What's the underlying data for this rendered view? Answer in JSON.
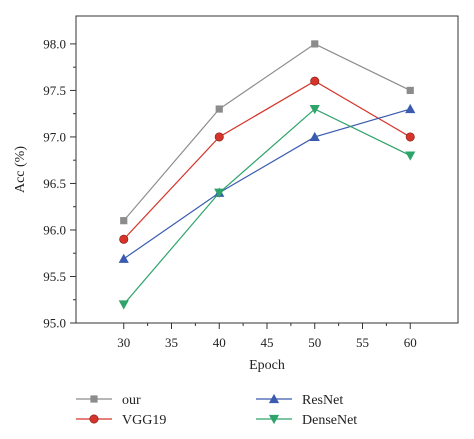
{
  "chart_data": {
    "type": "line",
    "title": "",
    "xlabel": "Epoch",
    "ylabel": "Acc (%)",
    "xlim": [
      25,
      65
    ],
    "ylim": [
      95.0,
      98.3
    ],
    "x_ticks": [
      30,
      35,
      40,
      45,
      50,
      55,
      60
    ],
    "y_ticks": [
      95.0,
      95.5,
      96.0,
      96.5,
      97.0,
      97.5,
      98.0
    ],
    "grid": false,
    "legend_position": "bottom",
    "x": [
      30,
      40,
      50,
      60
    ],
    "series": [
      {
        "name": "our",
        "values": [
          96.1,
          97.3,
          98.0,
          97.5
        ],
        "color": "#8c8c8c",
        "marker": "square"
      },
      {
        "name": "VGG19",
        "values": [
          95.9,
          97.0,
          97.6,
          97.0
        ],
        "color": "#d6342a",
        "marker": "circle"
      },
      {
        "name": "ResNet",
        "values": [
          95.69,
          96.4,
          97.0,
          97.3
        ],
        "color": "#3a5bb0",
        "marker": "triangle-up"
      },
      {
        "name": "DenseNet",
        "values": [
          95.2,
          96.4,
          97.3,
          96.8
        ],
        "color": "#2ea36a",
        "marker": "triangle-down"
      }
    ]
  }
}
